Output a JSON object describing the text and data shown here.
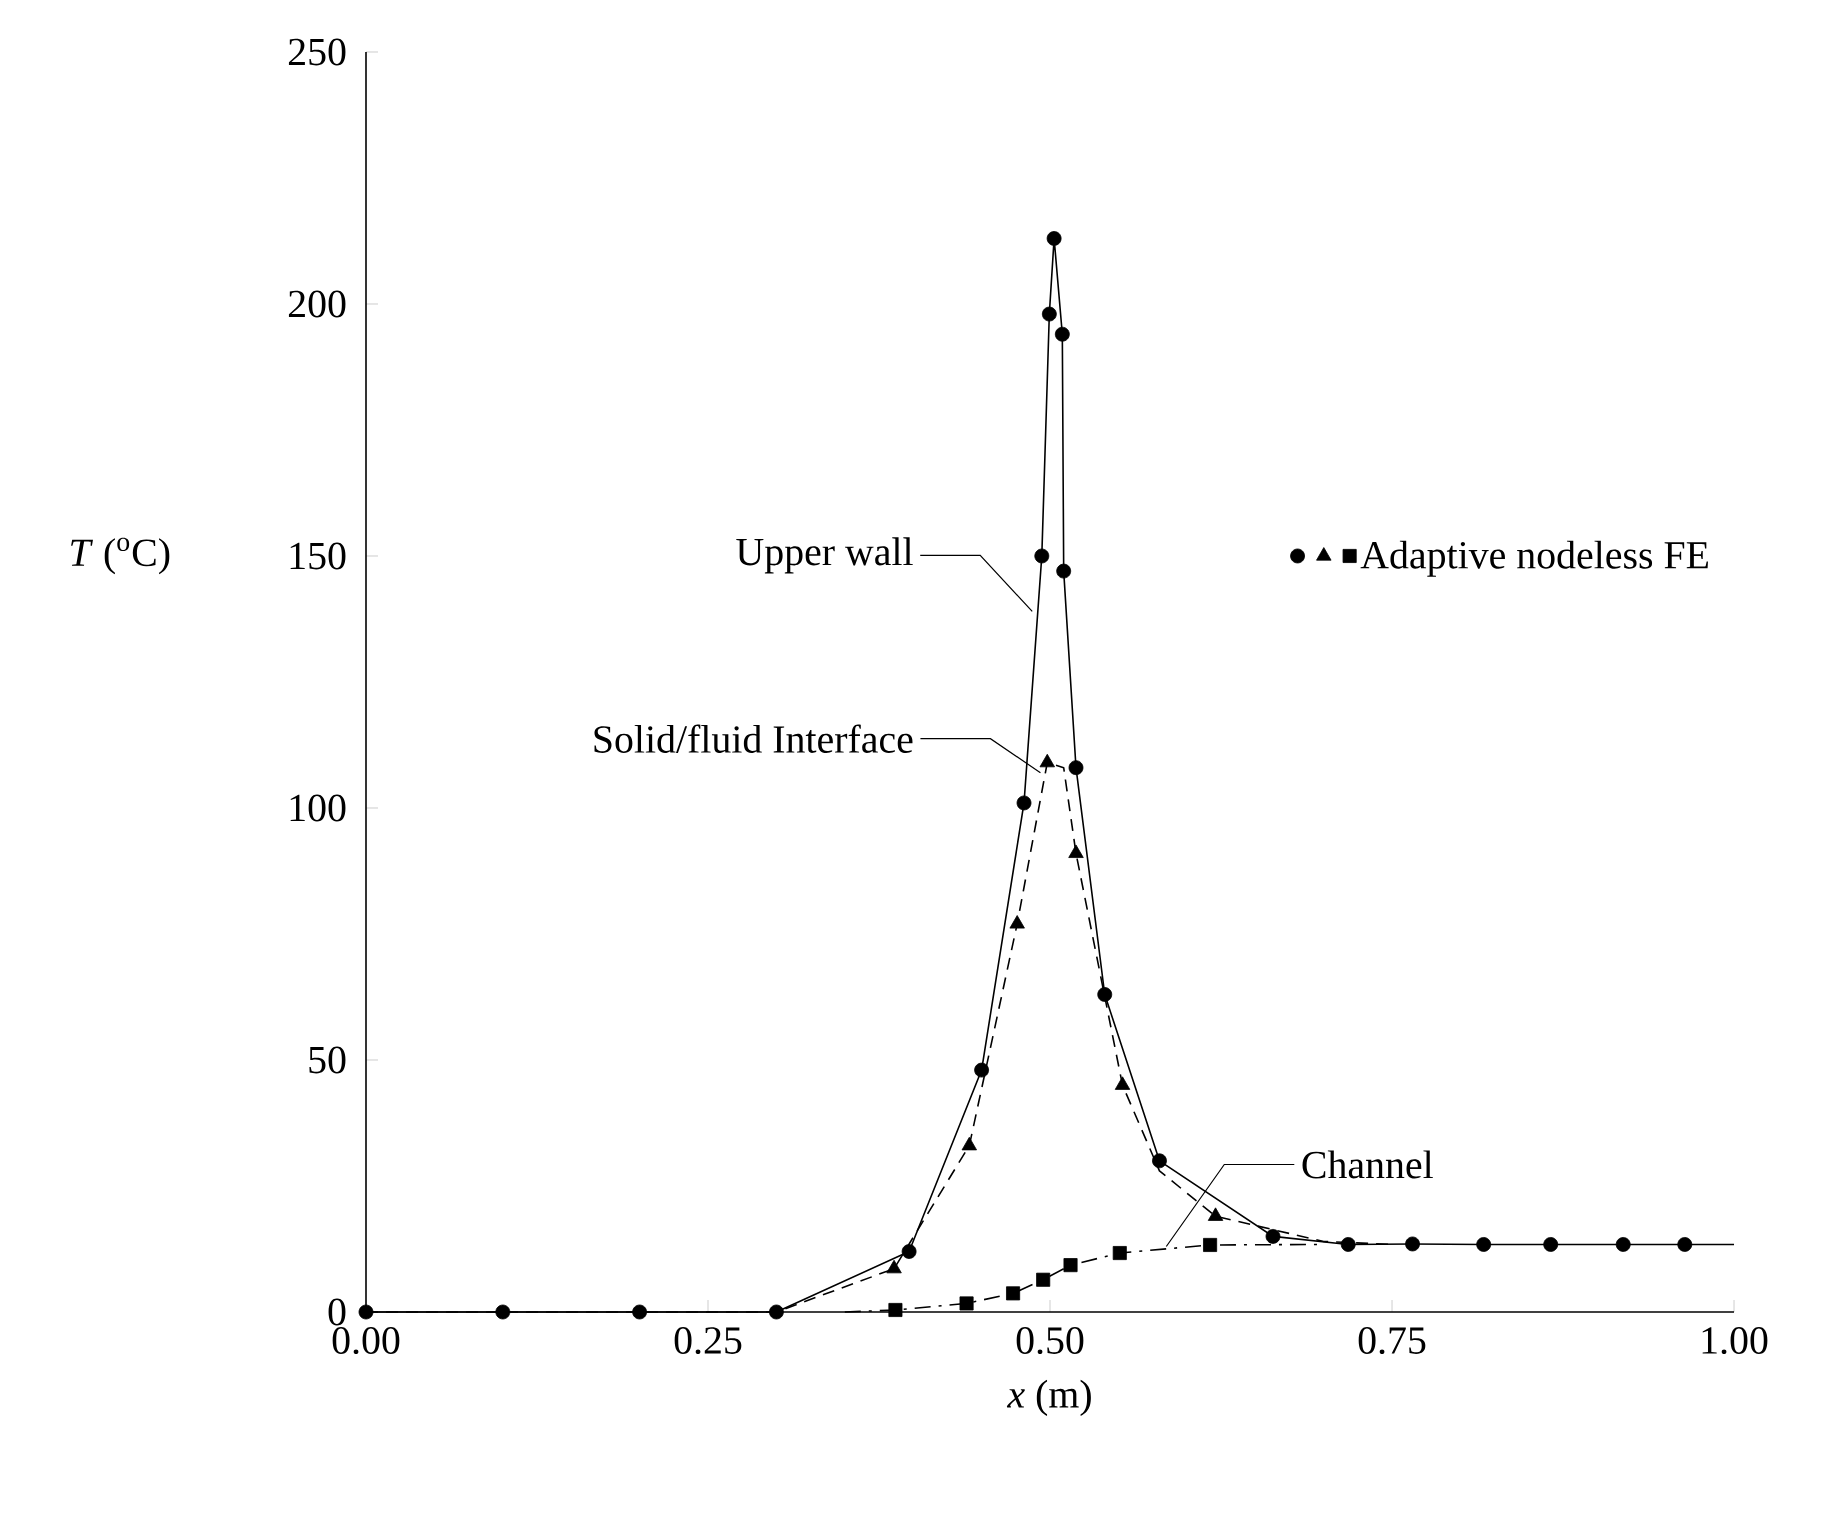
{
  "chart_data": {
    "type": "line",
    "xlabel": "*x* (m)",
    "ylabel": "*T* ($^{o}$C)",
    "xlim": [
      0,
      1
    ],
    "ylim": [
      0,
      250
    ],
    "xticks": [
      {
        "value": 0,
        "label": "0.00"
      },
      {
        "value": 0.25,
        "label": "0.25"
      },
      {
        "value": 0.5,
        "label": "0.50"
      },
      {
        "value": 0.75,
        "label": "0.75"
      },
      {
        "value": 1,
        "label": "1.00"
      }
    ],
    "yticks": [
      0,
      50,
      100,
      150,
      200,
      250
    ],
    "grid": false,
    "legend": "right",
    "series": [
      {
        "line_style": "solid",
        "color": "#000000",
        "x": [
          0,
          0.1,
          0.2,
          0.3,
          0.397,
          0.45,
          0.481,
          0.494,
          0.4995,
          0.503,
          0.509,
          0.51,
          0.519,
          0.54,
          0.58,
          0.663,
          0.718,
          0.765,
          0.817,
          0.866,
          0.919,
          0.964,
          1.0
        ],
        "values": [
          0,
          0,
          0,
          0,
          12,
          48,
          101,
          150,
          198,
          213,
          194,
          147,
          108,
          63,
          30,
          15,
          13.4,
          13.5,
          13.4,
          13.4,
          13.4,
          13.4,
          13.4
        ]
      },
      {
        "line_style": "dashed",
        "color": "#000000",
        "x": [
          0,
          0.3,
          0.386,
          0.441,
          0.476,
          0.498,
          0.51,
          0.519,
          0.553,
          0.58,
          0.621,
          0.7,
          0.75
        ],
        "values": [
          0,
          0,
          8.6,
          33,
          77,
          109,
          108,
          91,
          45,
          28,
          19,
          14,
          13.4
        ]
      },
      {
        "line_style": "dashdot",
        "color": "#000000",
        "x": [
          0.35,
          0.387,
          0.439,
          0.473,
          0.495,
          0.515,
          0.551,
          0.617,
          0.7
        ],
        "values": [
          0,
          0.4,
          1.7,
          3.7,
          6.4,
          9.3,
          11.7,
          13.3,
          13.4
        ]
      },
      {
        "type": "scatter",
        "marker": "circle",
        "color": "#000000",
        "x": [
          0,
          0.1,
          0.2,
          0.3,
          0.397,
          0.45,
          0.481,
          0.494,
          0.4995,
          0.503,
          0.509,
          0.51,
          0.519,
          0.54,
          0.58,
          0.663,
          0.718,
          0.765,
          0.817,
          0.866,
          0.919,
          0.964
        ],
        "values": [
          0,
          0,
          0,
          0,
          12,
          48,
          101,
          150,
          198,
          213,
          194,
          147,
          108,
          63,
          30,
          15,
          13.4,
          13.5,
          13.4,
          13.4,
          13.4,
          13.4
        ]
      },
      {
        "type": "scatter",
        "marker": "triangle",
        "color": "#000000",
        "x": [
          0.386,
          0.441,
          0.476,
          0.498,
          0.519,
          0.553,
          0.621
        ],
        "values": [
          8.6,
          33,
          77,
          109,
          91,
          45,
          19
        ]
      },
      {
        "type": "scatter",
        "marker": "square",
        "color": "#000000",
        "name": "Adaptive nodeless FE",
        "x": [
          0.387,
          0.439,
          0.473,
          0.495,
          0.515,
          0.551,
          0.617
        ],
        "values": [
          0.4,
          1.7,
          3.7,
          6.4,
          9.3,
          11.7,
          13.3
        ]
      }
    ],
    "annotations": [
      {
        "text": "Upper wall",
        "x": 0.487,
        "y": 139
      },
      {
        "text": "Solid/fluid Interface",
        "x": 0.493,
        "y": 107
      },
      {
        "text": "Channel",
        "x": 0.585,
        "y": 13
      }
    ]
  }
}
